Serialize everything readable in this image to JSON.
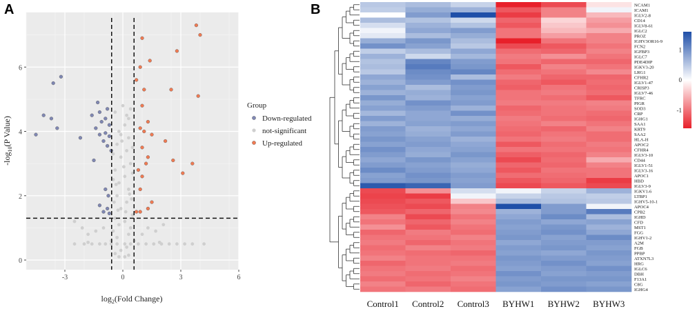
{
  "panels": {
    "a": "A",
    "b": "B"
  },
  "chart_data": [
    {
      "type": "scatter",
      "subtype": "volcano",
      "xlabel_prefix": "log",
      "xlabel_sub": "2",
      "xlabel_suffix": "(Fold Change)",
      "ylabel_prefix": "-log",
      "ylabel_sub": "10",
      "ylabel_suffix": "(P Value)",
      "xlim": [
        -5,
        6
      ],
      "ylim": [
        -0.3,
        7.7
      ],
      "xticks": [
        -3,
        0,
        3,
        6
      ],
      "yticks": [
        0,
        2,
        4,
        6
      ],
      "xtick_labels": [
        "-3",
        "0",
        "3",
        "6"
      ],
      "ytick_labels": [
        "0",
        "2",
        "4",
        "6"
      ],
      "thresholds": {
        "x": [
          -0.58,
          0.58
        ],
        "y": 1.3
      },
      "legend": {
        "title": "Group",
        "entries": [
          "Down-regulated",
          "not-significant",
          "Up-regulated"
        ],
        "colors": [
          "#8088b4",
          "#cfcfcf",
          "#f07a52"
        ],
        "placement": "right"
      },
      "series": [
        {
          "name": "Down-regulated",
          "color": "#7f87b3",
          "points": [
            [
              -4.5,
              3.9
            ],
            [
              -3.6,
              5.5
            ],
            [
              -3.2,
              5.7
            ],
            [
              -3.7,
              4.4
            ],
            [
              -4.1,
              4.5
            ],
            [
              -3.4,
              4.1
            ],
            [
              -2.2,
              3.8
            ],
            [
              -1.6,
              4.5
            ],
            [
              -1.3,
              4.9
            ],
            [
              -1.2,
              4.6
            ],
            [
              -0.8,
              4.7
            ],
            [
              -0.9,
              4.4
            ],
            [
              -1.1,
              4.3
            ],
            [
              -0.7,
              4.2
            ],
            [
              -1.4,
              4.1
            ],
            [
              -0.9,
              3.95
            ],
            [
              -1.2,
              3.9
            ],
            [
              -0.7,
              3.85
            ],
            [
              -1.0,
              3.7
            ],
            [
              -0.8,
              3.55
            ],
            [
              -0.6,
              3.4
            ],
            [
              -1.5,
              3.1
            ],
            [
              -0.9,
              2.2
            ],
            [
              -0.75,
              2.0
            ],
            [
              -1.2,
              1.7
            ],
            [
              -0.8,
              1.6
            ],
            [
              -1.0,
              1.5
            ],
            [
              -0.7,
              1.45
            ]
          ]
        },
        {
          "name": "Up-regulated",
          "color": "#f07a52",
          "points": [
            [
              3.8,
              7.3
            ],
            [
              4.0,
              7.0
            ],
            [
              1.0,
              6.9
            ],
            [
              2.8,
              6.5
            ],
            [
              1.4,
              6.2
            ],
            [
              0.9,
              6.0
            ],
            [
              0.7,
              5.6
            ],
            [
              1.1,
              5.3
            ],
            [
              2.5,
              5.3
            ],
            [
              3.9,
              5.1
            ],
            [
              1.0,
              4.8
            ],
            [
              1.3,
              4.3
            ],
            [
              0.9,
              4.1
            ],
            [
              1.1,
              4.0
            ],
            [
              1.5,
              3.9
            ],
            [
              2.2,
              3.7
            ],
            [
              1.0,
              3.5
            ],
            [
              1.3,
              3.2
            ],
            [
              2.6,
              3.1
            ],
            [
              3.6,
              3.0
            ],
            [
              1.2,
              3.0
            ],
            [
              0.8,
              2.8
            ],
            [
              1.0,
              2.6
            ],
            [
              3.1,
              2.7
            ],
            [
              0.9,
              2.2
            ],
            [
              1.5,
              1.8
            ],
            [
              1.3,
              1.6
            ],
            [
              0.7,
              1.5
            ],
            [
              0.9,
              1.5
            ]
          ]
        },
        {
          "name": "not-significant",
          "color": "#cfcfcf",
          "points": [
            [
              -2.5,
              0.5
            ],
            [
              -2.0,
              0.5
            ],
            [
              -1.6,
              0.5
            ],
            [
              -1.2,
              0.5
            ],
            [
              -0.9,
              0.5
            ],
            [
              -0.6,
              0.5
            ],
            [
              -0.3,
              0.5
            ],
            [
              0.1,
              0.5
            ],
            [
              0.4,
              0.5
            ],
            [
              0.8,
              0.5
            ],
            [
              1.2,
              0.5
            ],
            [
              1.6,
              0.5
            ],
            [
              2.0,
              0.5
            ],
            [
              2.4,
              0.5
            ],
            [
              2.8,
              0.5
            ],
            [
              3.2,
              0.5
            ],
            [
              3.6,
              0.5
            ],
            [
              4.2,
              0.5
            ],
            [
              -1.8,
              0.55
            ],
            [
              1.9,
              0.55
            ],
            [
              -0.4,
              0.2
            ],
            [
              -0.2,
              0.1
            ],
            [
              0.1,
              0.1
            ],
            [
              0.3,
              0.15
            ],
            [
              -0.1,
              0.3
            ],
            [
              0.2,
              0.4
            ],
            [
              -0.3,
              0.7
            ],
            [
              0.3,
              0.8
            ],
            [
              -0.5,
              0.9
            ],
            [
              0.4,
              1.0
            ],
            [
              -0.2,
              1.1
            ],
            [
              0.1,
              1.2
            ],
            [
              -0.4,
              1.3
            ],
            [
              0.5,
              1.4
            ],
            [
              -0.1,
              1.6
            ],
            [
              0.2,
              1.8
            ],
            [
              -0.3,
              2.0
            ],
            [
              0.3,
              2.2
            ],
            [
              -0.2,
              2.4
            ],
            [
              0.1,
              2.6
            ],
            [
              -0.4,
              2.8
            ],
            [
              0.4,
              3.0
            ],
            [
              -0.1,
              3.2
            ],
            [
              0.2,
              3.4
            ],
            [
              -0.3,
              3.6
            ],
            [
              0.3,
              3.8
            ],
            [
              -0.2,
              4.0
            ],
            [
              0.1,
              4.2
            ],
            [
              0.3,
              4.4
            ],
            [
              -0.4,
              4.6
            ],
            [
              0.4,
              4.7
            ],
            [
              0.0,
              4.8
            ],
            [
              -0.5,
              2.5
            ],
            [
              0.5,
              2.7
            ],
            [
              -0.45,
              1.8
            ],
            [
              0.45,
              1.9
            ],
            [
              -0.5,
              3.3
            ],
            [
              0.5,
              3.5
            ],
            [
              -0.1,
              3.9
            ],
            [
              0.2,
              4.5
            ],
            [
              1.3,
              1.0
            ],
            [
              1.7,
              0.9
            ],
            [
              2.1,
              1.1
            ],
            [
              -1.4,
              0.9
            ],
            [
              -1.8,
              0.8
            ],
            [
              -2.1,
              1.0
            ],
            [
              -2.5,
              1.2
            ],
            [
              1.0,
              0.8
            ],
            [
              -1.0,
              1.0
            ],
            [
              0.6,
              0.6
            ],
            [
              -0.6,
              0.6
            ],
            [
              0.05,
              2.9
            ],
            [
              -0.05,
              3.7
            ],
            [
              0.15,
              1.5
            ],
            [
              -0.25,
              1.55
            ],
            [
              0.35,
              2.05
            ],
            [
              -0.35,
              2.35
            ]
          ]
        }
      ]
    },
    {
      "type": "heatmap",
      "columns": [
        "Control1",
        "Control2",
        "Control3",
        "BYHW1",
        "BYHW2",
        "BYHW3"
      ],
      "rows": [
        "NCAM1",
        "ICAM1",
        "IGLV2-8",
        "CD14",
        "IGLV8-61",
        "IGLC2",
        "PROZ",
        "IGHV3OR16-9",
        "FCN2",
        "IGFBP3",
        "IGLC7",
        "PDE4DIP",
        "IGKV3-20",
        "LRG1",
        "CFHR2",
        "IGLV1-47",
        "CRISP3",
        "IGLV7-46",
        "TFRC",
        "PIGR",
        "SOD3",
        "CRP",
        "IGHG1",
        "SAA1",
        "KRT9",
        "SAA2",
        "HLA-H",
        "APOC2",
        "CFHR4",
        "IGLV3-10",
        "CD44",
        "IGLV1-51",
        "IGLV3-16",
        "APOC1",
        "HBD",
        "IGLV3-9",
        "IGKV1-6",
        "LTBP1",
        "IGHV5-10-1",
        "APOC4",
        "CPB2",
        "IGHD",
        "CFD",
        "MST1",
        "FGG",
        "IGHV1-2",
        "A2M",
        "FGB",
        "PPBP",
        "ATXN7L3",
        "HRG",
        "IGLC6",
        "DBH",
        "F13A1",
        "C8G",
        "IGHG4"
      ],
      "values": [
        [
          0.5,
          0.6,
          0.4,
          -1.6,
          -1.3,
          -0.2
        ],
        [
          0.45,
          0.75,
          0.7,
          -1.2,
          -0.9,
          0.1
        ],
        [
          0.0,
          0.9,
          1.7,
          -1.4,
          -0.9,
          -0.5
        ],
        [
          0.6,
          0.55,
          0.35,
          -1.1,
          -0.3,
          -0.7
        ],
        [
          0.3,
          0.7,
          0.55,
          -1.2,
          -0.4,
          -0.8
        ],
        [
          0.1,
          0.8,
          0.9,
          -1.0,
          -0.5,
          -0.6
        ],
        [
          0.2,
          0.6,
          0.75,
          -1.0,
          -0.7,
          -0.9
        ],
        [
          0.75,
          0.95,
          0.6,
          -1.6,
          -1.0,
          -0.9
        ],
        [
          1.0,
          0.85,
          0.5,
          -1.3,
          -1.2,
          -1.0
        ],
        [
          0.45,
          0.6,
          0.8,
          -1.05,
          -1.1,
          -0.9
        ],
        [
          0.7,
          0.35,
          0.65,
          -0.95,
          -0.8,
          -1.0
        ],
        [
          0.55,
          1.1,
          0.9,
          -1.0,
          -1.1,
          -1.1
        ],
        [
          0.6,
          1.2,
          0.95,
          -1.2,
          -0.9,
          -1.0
        ],
        [
          0.5,
          1.05,
          1.1,
          -1.05,
          -1.0,
          -0.85
        ],
        [
          0.8,
          1.0,
          0.6,
          -0.95,
          -1.1,
          -1.1
        ],
        [
          0.7,
          0.9,
          1.0,
          -1.1,
          -1.2,
          -1.05
        ],
        [
          0.85,
          0.6,
          0.9,
          -1.15,
          -1.0,
          -1.1
        ],
        [
          0.7,
          0.75,
          0.95,
          -1.0,
          -0.95,
          -1.05
        ],
        [
          0.95,
          0.7,
          0.85,
          -1.0,
          -1.05,
          -1.2
        ],
        [
          0.75,
          1.0,
          0.9,
          -0.95,
          -0.95,
          -0.9
        ],
        [
          0.85,
          0.9,
          0.7,
          -1.1,
          -1.0,
          -0.95
        ],
        [
          0.65,
          0.8,
          1.0,
          -1.05,
          -1.0,
          -1.05
        ],
        [
          0.9,
          0.8,
          0.75,
          -0.95,
          -1.05,
          -1.1
        ],
        [
          0.7,
          0.85,
          0.9,
          -1.0,
          -0.9,
          -1.0
        ],
        [
          0.9,
          0.7,
          0.8,
          -1.05,
          -1.1,
          -0.9
        ],
        [
          0.85,
          0.75,
          0.9,
          -1.1,
          -1.0,
          -1.05
        ],
        [
          0.95,
          0.85,
          0.7,
          -1.0,
          -0.95,
          -1.05
        ],
        [
          0.85,
          0.9,
          0.8,
          -1.2,
          -1.05,
          -0.95
        ],
        [
          1.0,
          0.8,
          0.85,
          -1.0,
          -1.0,
          -1.0
        ],
        [
          0.9,
          0.75,
          0.95,
          -1.15,
          -1.1,
          -0.9
        ],
        [
          0.8,
          0.95,
          0.85,
          -1.3,
          -1.05,
          -0.6
        ],
        [
          0.9,
          0.85,
          0.75,
          -1.1,
          -1.1,
          -0.9
        ],
        [
          1.05,
          0.9,
          0.8,
          -1.2,
          -1.0,
          -1.0
        ],
        [
          0.85,
          1.0,
          0.9,
          -1.05,
          -1.05,
          -1.0
        ],
        [
          0.9,
          0.95,
          0.85,
          -1.2,
          -1.1,
          -1.4
        ],
        [
          1.5,
          1.4,
          0.9,
          -1.3,
          -1.2,
          -1.3
        ],
        [
          -1.3,
          -0.8,
          0.3,
          0.1,
          0.4,
          0.7
        ],
        [
          -1.35,
          -1.4,
          0.1,
          0.4,
          0.5,
          0.45
        ],
        [
          -1.3,
          -1.2,
          -0.4,
          0.6,
          0.55,
          0.5
        ],
        [
          -1.25,
          -1.3,
          -0.9,
          1.6,
          0.9,
          0.1
        ],
        [
          -1.2,
          -1.1,
          -0.85,
          0.7,
          0.9,
          1.2
        ],
        [
          -0.9,
          -1.3,
          -1.0,
          0.8,
          1.05,
          0.6
        ],
        [
          -1.0,
          -1.1,
          -0.9,
          0.9,
          0.8,
          0.85
        ],
        [
          -0.8,
          -1.2,
          -1.0,
          0.85,
          0.95,
          0.7
        ],
        [
          -1.1,
          -0.95,
          -1.05,
          0.9,
          1.0,
          0.8
        ],
        [
          -1.0,
          -1.0,
          -0.9,
          0.95,
          0.85,
          1.05
        ],
        [
          -0.95,
          -1.1,
          -1.0,
          0.8,
          0.9,
          0.9
        ],
        [
          -1.05,
          -0.9,
          -0.95,
          0.9,
          0.95,
          0.85
        ],
        [
          -1.0,
          -1.05,
          -1.1,
          0.85,
          0.8,
          0.95
        ],
        [
          -0.9,
          -1.0,
          -1.0,
          0.95,
          0.9,
          0.9
        ],
        [
          -1.1,
          -1.0,
          -0.95,
          0.9,
          1.0,
          0.85
        ],
        [
          -1.0,
          -0.95,
          -1.05,
          0.85,
          0.9,
          1.0
        ],
        [
          -0.95,
          -1.05,
          -1.0,
          1.0,
          0.85,
          0.9
        ],
        [
          -1.05,
          -1.0,
          -0.9,
          0.9,
          0.95,
          0.95
        ],
        [
          -0.9,
          -1.1,
          -1.0,
          0.95,
          0.9,
          0.85
        ],
        [
          -1.0,
          -0.95,
          -1.05,
          0.85,
          1.0,
          0.95
        ]
      ],
      "color_scale": {
        "min": -1.6,
        "max": 1.6,
        "low": "#e8202a",
        "mid": "#ffffff",
        "high": "#1f4fa8"
      },
      "colorbar_ticks": [
        1,
        0,
        -1
      ],
      "colorbar_labels": [
        "1",
        "0",
        "-1"
      ],
      "row_clusters": 2,
      "cluster_split_after_row": 35
    }
  ]
}
